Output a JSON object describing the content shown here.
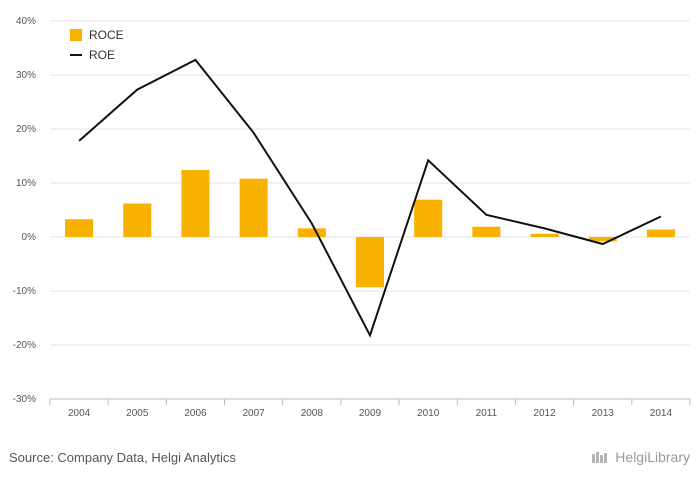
{
  "chart_data": {
    "type": "bar",
    "categories": [
      "2004",
      "2005",
      "2006",
      "2007",
      "2008",
      "2009",
      "2010",
      "2011",
      "2012",
      "2013",
      "2014"
    ],
    "series": [
      {
        "name": "ROCE",
        "type": "bar",
        "color": "#f9b100",
        "values": [
          3.3,
          6.2,
          12.4,
          10.8,
          1.6,
          -9.3,
          6.9,
          1.9,
          0.6,
          -0.8,
          1.4
        ]
      },
      {
        "name": "ROE",
        "type": "line",
        "color": "#111111",
        "values": [
          17.8,
          27.3,
          32.8,
          19.3,
          2.5,
          -18.2,
          14.2,
          4.1,
          1.6,
          -1.3,
          3.8
        ]
      }
    ],
    "ylim": [
      -30,
      40
    ],
    "yticks": [
      -30,
      -20,
      -10,
      0,
      10,
      20,
      30,
      40
    ],
    "ytick_labels": [
      "-30%",
      "-20%",
      "-10%",
      "0%",
      "10%",
      "20%",
      "30%",
      "40%"
    ],
    "legend_position": "top-left",
    "grid": true
  },
  "footer": {
    "source": "Source: Company Data, Helgi Analytics",
    "brand": "HelgiLibrary"
  }
}
